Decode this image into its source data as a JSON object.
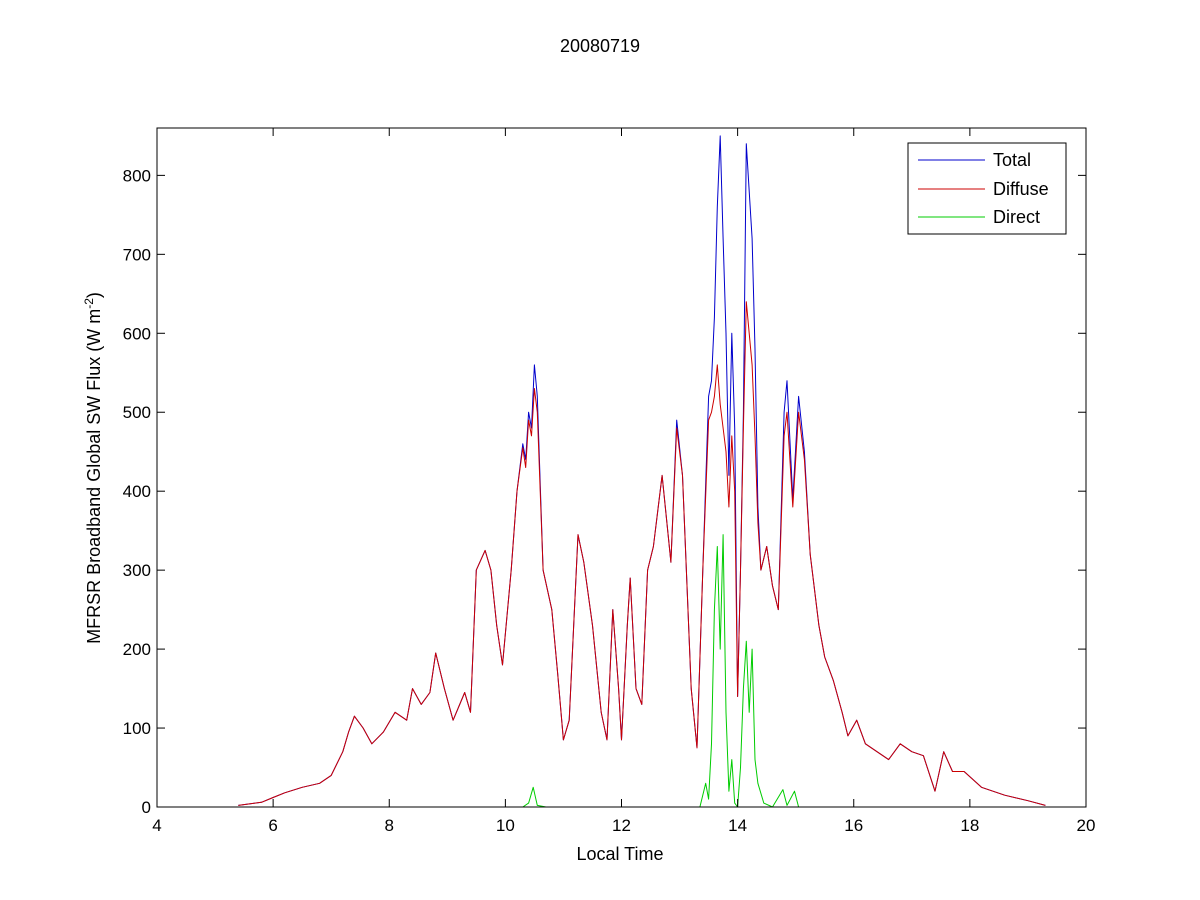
{
  "chart_data": {
    "type": "line",
    "title": "20080719",
    "xlabel": "Local Time",
    "ylabel_prefix": "MFRSR Broadband Global SW Flux (W m",
    "ylabel_exponent": "-2",
    "ylabel_suffix": ")",
    "xlim": [
      4,
      20
    ],
    "ylim": [
      0,
      860
    ],
    "xticks": [
      4,
      6,
      8,
      10,
      12,
      14,
      16,
      18,
      20
    ],
    "yticks": [
      0,
      100,
      200,
      300,
      400,
      500,
      600,
      700,
      800
    ],
    "grid": false,
    "legend_position": "top-right",
    "series": [
      {
        "name": "Total",
        "color": "#0000cc",
        "points": [
          [
            5.4,
            2
          ],
          [
            5.8,
            6
          ],
          [
            6.0,
            12
          ],
          [
            6.2,
            18
          ],
          [
            6.5,
            25
          ],
          [
            6.8,
            30
          ],
          [
            7.0,
            40
          ],
          [
            7.2,
            70
          ],
          [
            7.3,
            95
          ],
          [
            7.4,
            115
          ],
          [
            7.55,
            100
          ],
          [
            7.7,
            80
          ],
          [
            7.9,
            95
          ],
          [
            8.1,
            120
          ],
          [
            8.3,
            110
          ],
          [
            8.4,
            150
          ],
          [
            8.55,
            130
          ],
          [
            8.7,
            145
          ],
          [
            8.8,
            195
          ],
          [
            8.95,
            150
          ],
          [
            9.1,
            110
          ],
          [
            9.3,
            145
          ],
          [
            9.4,
            120
          ],
          [
            9.5,
            300
          ],
          [
            9.65,
            325
          ],
          [
            9.75,
            300
          ],
          [
            9.85,
            230
          ],
          [
            9.95,
            180
          ],
          [
            10.1,
            300
          ],
          [
            10.2,
            400
          ],
          [
            10.3,
            460
          ],
          [
            10.35,
            440
          ],
          [
            10.4,
            500
          ],
          [
            10.45,
            480
          ],
          [
            10.5,
            560
          ],
          [
            10.55,
            520
          ],
          [
            10.65,
            300
          ],
          [
            10.8,
            250
          ],
          [
            10.9,
            170
          ],
          [
            11.0,
            85
          ],
          [
            11.1,
            110
          ],
          [
            11.25,
            345
          ],
          [
            11.35,
            310
          ],
          [
            11.5,
            230
          ],
          [
            11.65,
            120
          ],
          [
            11.75,
            85
          ],
          [
            11.85,
            250
          ],
          [
            11.95,
            150
          ],
          [
            12.0,
            85
          ],
          [
            12.1,
            230
          ],
          [
            12.15,
            290
          ],
          [
            12.25,
            150
          ],
          [
            12.35,
            130
          ],
          [
            12.45,
            300
          ],
          [
            12.55,
            330
          ],
          [
            12.7,
            420
          ],
          [
            12.85,
            310
          ],
          [
            12.95,
            490
          ],
          [
            13.05,
            420
          ],
          [
            13.2,
            150
          ],
          [
            13.3,
            75
          ],
          [
            13.4,
            300
          ],
          [
            13.5,
            520
          ],
          [
            13.55,
            540
          ],
          [
            13.6,
            620
          ],
          [
            13.65,
            760
          ],
          [
            13.7,
            850
          ],
          [
            13.75,
            720
          ],
          [
            13.8,
            600
          ],
          [
            13.85,
            420
          ],
          [
            13.9,
            600
          ],
          [
            13.95,
            480
          ],
          [
            14.0,
            140
          ],
          [
            14.05,
            300
          ],
          [
            14.1,
            500
          ],
          [
            14.15,
            840
          ],
          [
            14.2,
            780
          ],
          [
            14.25,
            720
          ],
          [
            14.3,
            580
          ],
          [
            14.35,
            380
          ],
          [
            14.4,
            300
          ],
          [
            14.5,
            330
          ],
          [
            14.6,
            280
          ],
          [
            14.7,
            250
          ],
          [
            14.8,
            500
          ],
          [
            14.85,
            540
          ],
          [
            14.95,
            390
          ],
          [
            15.05,
            520
          ],
          [
            15.15,
            450
          ],
          [
            15.25,
            320
          ],
          [
            15.4,
            230
          ],
          [
            15.5,
            190
          ],
          [
            15.65,
            160
          ],
          [
            15.8,
            120
          ],
          [
            15.9,
            90
          ],
          [
            16.05,
            110
          ],
          [
            16.2,
            80
          ],
          [
            16.4,
            70
          ],
          [
            16.6,
            60
          ],
          [
            16.8,
            80
          ],
          [
            17.0,
            70
          ],
          [
            17.2,
            65
          ],
          [
            17.4,
            20
          ],
          [
            17.55,
            70
          ],
          [
            17.7,
            45
          ],
          [
            17.9,
            45
          ],
          [
            18.2,
            25
          ],
          [
            18.6,
            15
          ],
          [
            19.0,
            8
          ],
          [
            19.3,
            2
          ]
        ]
      },
      {
        "name": "Diffuse",
        "color": "#cc0000",
        "points": [
          [
            5.4,
            2
          ],
          [
            5.8,
            6
          ],
          [
            6.0,
            12
          ],
          [
            6.2,
            18
          ],
          [
            6.5,
            25
          ],
          [
            6.8,
            30
          ],
          [
            7.0,
            40
          ],
          [
            7.2,
            70
          ],
          [
            7.3,
            95
          ],
          [
            7.4,
            115
          ],
          [
            7.55,
            100
          ],
          [
            7.7,
            80
          ],
          [
            7.9,
            95
          ],
          [
            8.1,
            120
          ],
          [
            8.3,
            110
          ],
          [
            8.4,
            150
          ],
          [
            8.55,
            130
          ],
          [
            8.7,
            145
          ],
          [
            8.8,
            195
          ],
          [
            8.95,
            150
          ],
          [
            9.1,
            110
          ],
          [
            9.3,
            145
          ],
          [
            9.4,
            120
          ],
          [
            9.5,
            300
          ],
          [
            9.65,
            325
          ],
          [
            9.75,
            300
          ],
          [
            9.85,
            230
          ],
          [
            9.95,
            180
          ],
          [
            10.1,
            300
          ],
          [
            10.2,
            400
          ],
          [
            10.3,
            455
          ],
          [
            10.35,
            430
          ],
          [
            10.4,
            490
          ],
          [
            10.45,
            470
          ],
          [
            10.5,
            530
          ],
          [
            10.55,
            500
          ],
          [
            10.65,
            300
          ],
          [
            10.8,
            250
          ],
          [
            10.9,
            170
          ],
          [
            11.0,
            85
          ],
          [
            11.1,
            110
          ],
          [
            11.25,
            345
          ],
          [
            11.35,
            310
          ],
          [
            11.5,
            230
          ],
          [
            11.65,
            120
          ],
          [
            11.75,
            85
          ],
          [
            11.85,
            250
          ],
          [
            11.95,
            150
          ],
          [
            12.0,
            85
          ],
          [
            12.1,
            230
          ],
          [
            12.15,
            290
          ],
          [
            12.25,
            150
          ],
          [
            12.35,
            130
          ],
          [
            12.45,
            300
          ],
          [
            12.55,
            330
          ],
          [
            12.7,
            420
          ],
          [
            12.85,
            310
          ],
          [
            12.95,
            480
          ],
          [
            13.05,
            420
          ],
          [
            13.2,
            150
          ],
          [
            13.3,
            75
          ],
          [
            13.4,
            300
          ],
          [
            13.5,
            490
          ],
          [
            13.55,
            500
          ],
          [
            13.6,
            520
          ],
          [
            13.65,
            560
          ],
          [
            13.7,
            510
          ],
          [
            13.75,
            480
          ],
          [
            13.8,
            450
          ],
          [
            13.85,
            380
          ],
          [
            13.9,
            470
          ],
          [
            13.95,
            400
          ],
          [
            14.0,
            140
          ],
          [
            14.05,
            300
          ],
          [
            14.1,
            480
          ],
          [
            14.15,
            640
          ],
          [
            14.2,
            600
          ],
          [
            14.25,
            560
          ],
          [
            14.3,
            470
          ],
          [
            14.35,
            360
          ],
          [
            14.4,
            300
          ],
          [
            14.5,
            330
          ],
          [
            14.6,
            280
          ],
          [
            14.7,
            250
          ],
          [
            14.8,
            470
          ],
          [
            14.85,
            500
          ],
          [
            14.95,
            380
          ],
          [
            15.05,
            500
          ],
          [
            15.15,
            440
          ],
          [
            15.25,
            320
          ],
          [
            15.4,
            230
          ],
          [
            15.5,
            190
          ],
          [
            15.65,
            160
          ],
          [
            15.8,
            120
          ],
          [
            15.9,
            90
          ],
          [
            16.05,
            110
          ],
          [
            16.2,
            80
          ],
          [
            16.4,
            70
          ],
          [
            16.6,
            60
          ],
          [
            16.8,
            80
          ],
          [
            17.0,
            70
          ],
          [
            17.2,
            65
          ],
          [
            17.4,
            20
          ],
          [
            17.55,
            70
          ],
          [
            17.7,
            45
          ],
          [
            17.9,
            45
          ],
          [
            18.2,
            25
          ],
          [
            18.6,
            15
          ],
          [
            19.0,
            8
          ],
          [
            19.3,
            2
          ]
        ]
      },
      {
        "name": "Direct",
        "color": "#00cc00",
        "points": [
          [
            5.4,
            0
          ],
          [
            10.3,
            0
          ],
          [
            10.4,
            5
          ],
          [
            10.48,
            25
          ],
          [
            10.55,
            2
          ],
          [
            10.7,
            0
          ],
          [
            13.35,
            0
          ],
          [
            13.45,
            30
          ],
          [
            13.5,
            10
          ],
          [
            13.55,
            80
          ],
          [
            13.6,
            250
          ],
          [
            13.65,
            330
          ],
          [
            13.7,
            200
          ],
          [
            13.75,
            345
          ],
          [
            13.8,
            120
          ],
          [
            13.85,
            20
          ],
          [
            13.9,
            60
          ],
          [
            13.95,
            5
          ],
          [
            14.0,
            0
          ],
          [
            14.05,
            50
          ],
          [
            14.1,
            150
          ],
          [
            14.15,
            210
          ],
          [
            14.2,
            120
          ],
          [
            14.25,
            200
          ],
          [
            14.3,
            60
          ],
          [
            14.35,
            30
          ],
          [
            14.45,
            5
          ],
          [
            14.6,
            0
          ],
          [
            14.78,
            22
          ],
          [
            14.85,
            2
          ],
          [
            14.98,
            20
          ],
          [
            15.05,
            0
          ],
          [
            19.3,
            0
          ]
        ]
      }
    ]
  }
}
